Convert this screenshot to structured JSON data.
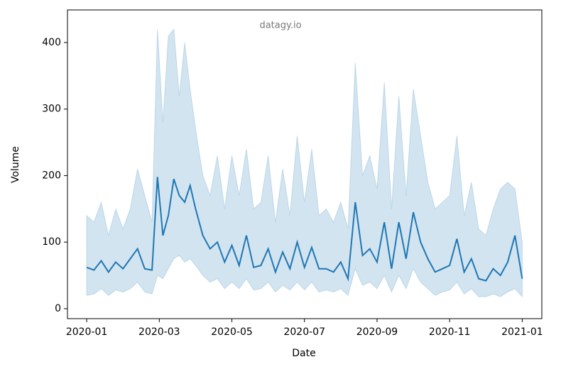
{
  "chart_data": {
    "type": "line",
    "watermark": "datagy.io",
    "xlabel": "Date",
    "ylabel": "Volume",
    "x": [
      0,
      0.2,
      0.4,
      0.6,
      0.8,
      1.0,
      1.2,
      1.4,
      1.6,
      1.8,
      1.95,
      2.1,
      2.25,
      2.4,
      2.55,
      2.7,
      2.85,
      3.0,
      3.2,
      3.4,
      3.6,
      3.8,
      4.0,
      4.2,
      4.4,
      4.6,
      4.8,
      5.0,
      5.2,
      5.4,
      5.6,
      5.8,
      6.0,
      6.2,
      6.4,
      6.6,
      6.8,
      7.0,
      7.2,
      7.4,
      7.6,
      7.8,
      8.0,
      8.2,
      8.4,
      8.6,
      8.8,
      9.0,
      9.2,
      9.4,
      9.6,
      9.8,
      10.0,
      10.2,
      10.4,
      10.6,
      10.8,
      11.0,
      11.2,
      11.4,
      11.6,
      11.8,
      12.0
    ],
    "series": [
      {
        "color": "#1f77b4",
        "values": [
          62,
          58,
          72,
          55,
          70,
          60,
          75,
          90,
          60,
          58,
          198,
          110,
          140,
          195,
          170,
          160,
          185,
          150,
          110,
          90,
          100,
          70,
          95,
          65,
          110,
          62,
          65,
          90,
          55,
          85,
          60,
          100,
          62,
          92,
          60,
          60,
          55,
          70,
          45,
          160,
          80,
          90,
          70,
          130,
          60,
          130,
          75,
          145,
          100,
          75,
          55,
          60,
          65,
          105,
          55,
          75,
          45,
          42,
          60,
          50,
          70,
          110,
          45
        ],
        "upper": [
          140,
          130,
          160,
          110,
          150,
          120,
          150,
          210,
          170,
          130,
          420,
          280,
          410,
          420,
          320,
          400,
          330,
          270,
          200,
          170,
          230,
          150,
          230,
          170,
          240,
          150,
          160,
          230,
          130,
          210,
          140,
          260,
          160,
          240,
          140,
          150,
          130,
          160,
          120,
          370,
          200,
          230,
          180,
          340,
          150,
          320,
          170,
          330,
          260,
          190,
          150,
          160,
          170,
          260,
          140,
          190,
          120,
          110,
          150,
          180,
          190,
          180,
          100
        ],
        "lower": [
          20,
          22,
          30,
          20,
          28,
          25,
          30,
          40,
          25,
          22,
          50,
          45,
          60,
          75,
          80,
          70,
          75,
          65,
          50,
          40,
          45,
          30,
          40,
          30,
          45,
          28,
          30,
          40,
          25,
          35,
          28,
          40,
          28,
          40,
          25,
          28,
          25,
          30,
          20,
          60,
          35,
          40,
          30,
          50,
          25,
          50,
          30,
          60,
          40,
          30,
          20,
          25,
          28,
          40,
          22,
          30,
          18,
          18,
          22,
          18,
          25,
          30,
          18
        ]
      }
    ],
    "xlim": [
      -0.53,
      12.54
    ],
    "xticks": [
      {
        "value": 0,
        "label": "2020-01"
      },
      {
        "value": 2,
        "label": "2020-03"
      },
      {
        "value": 4,
        "label": "2020-05"
      },
      {
        "value": 6,
        "label": "2020-07"
      },
      {
        "value": 8,
        "label": "2020-09"
      },
      {
        "value": 10,
        "label": "2020-11"
      },
      {
        "value": 12,
        "label": "2021-01"
      }
    ],
    "ylim": [
      -15,
      449
    ],
    "yticks": [
      0,
      100,
      200,
      300,
      400
    ],
    "band_opacity": 0.2
  }
}
